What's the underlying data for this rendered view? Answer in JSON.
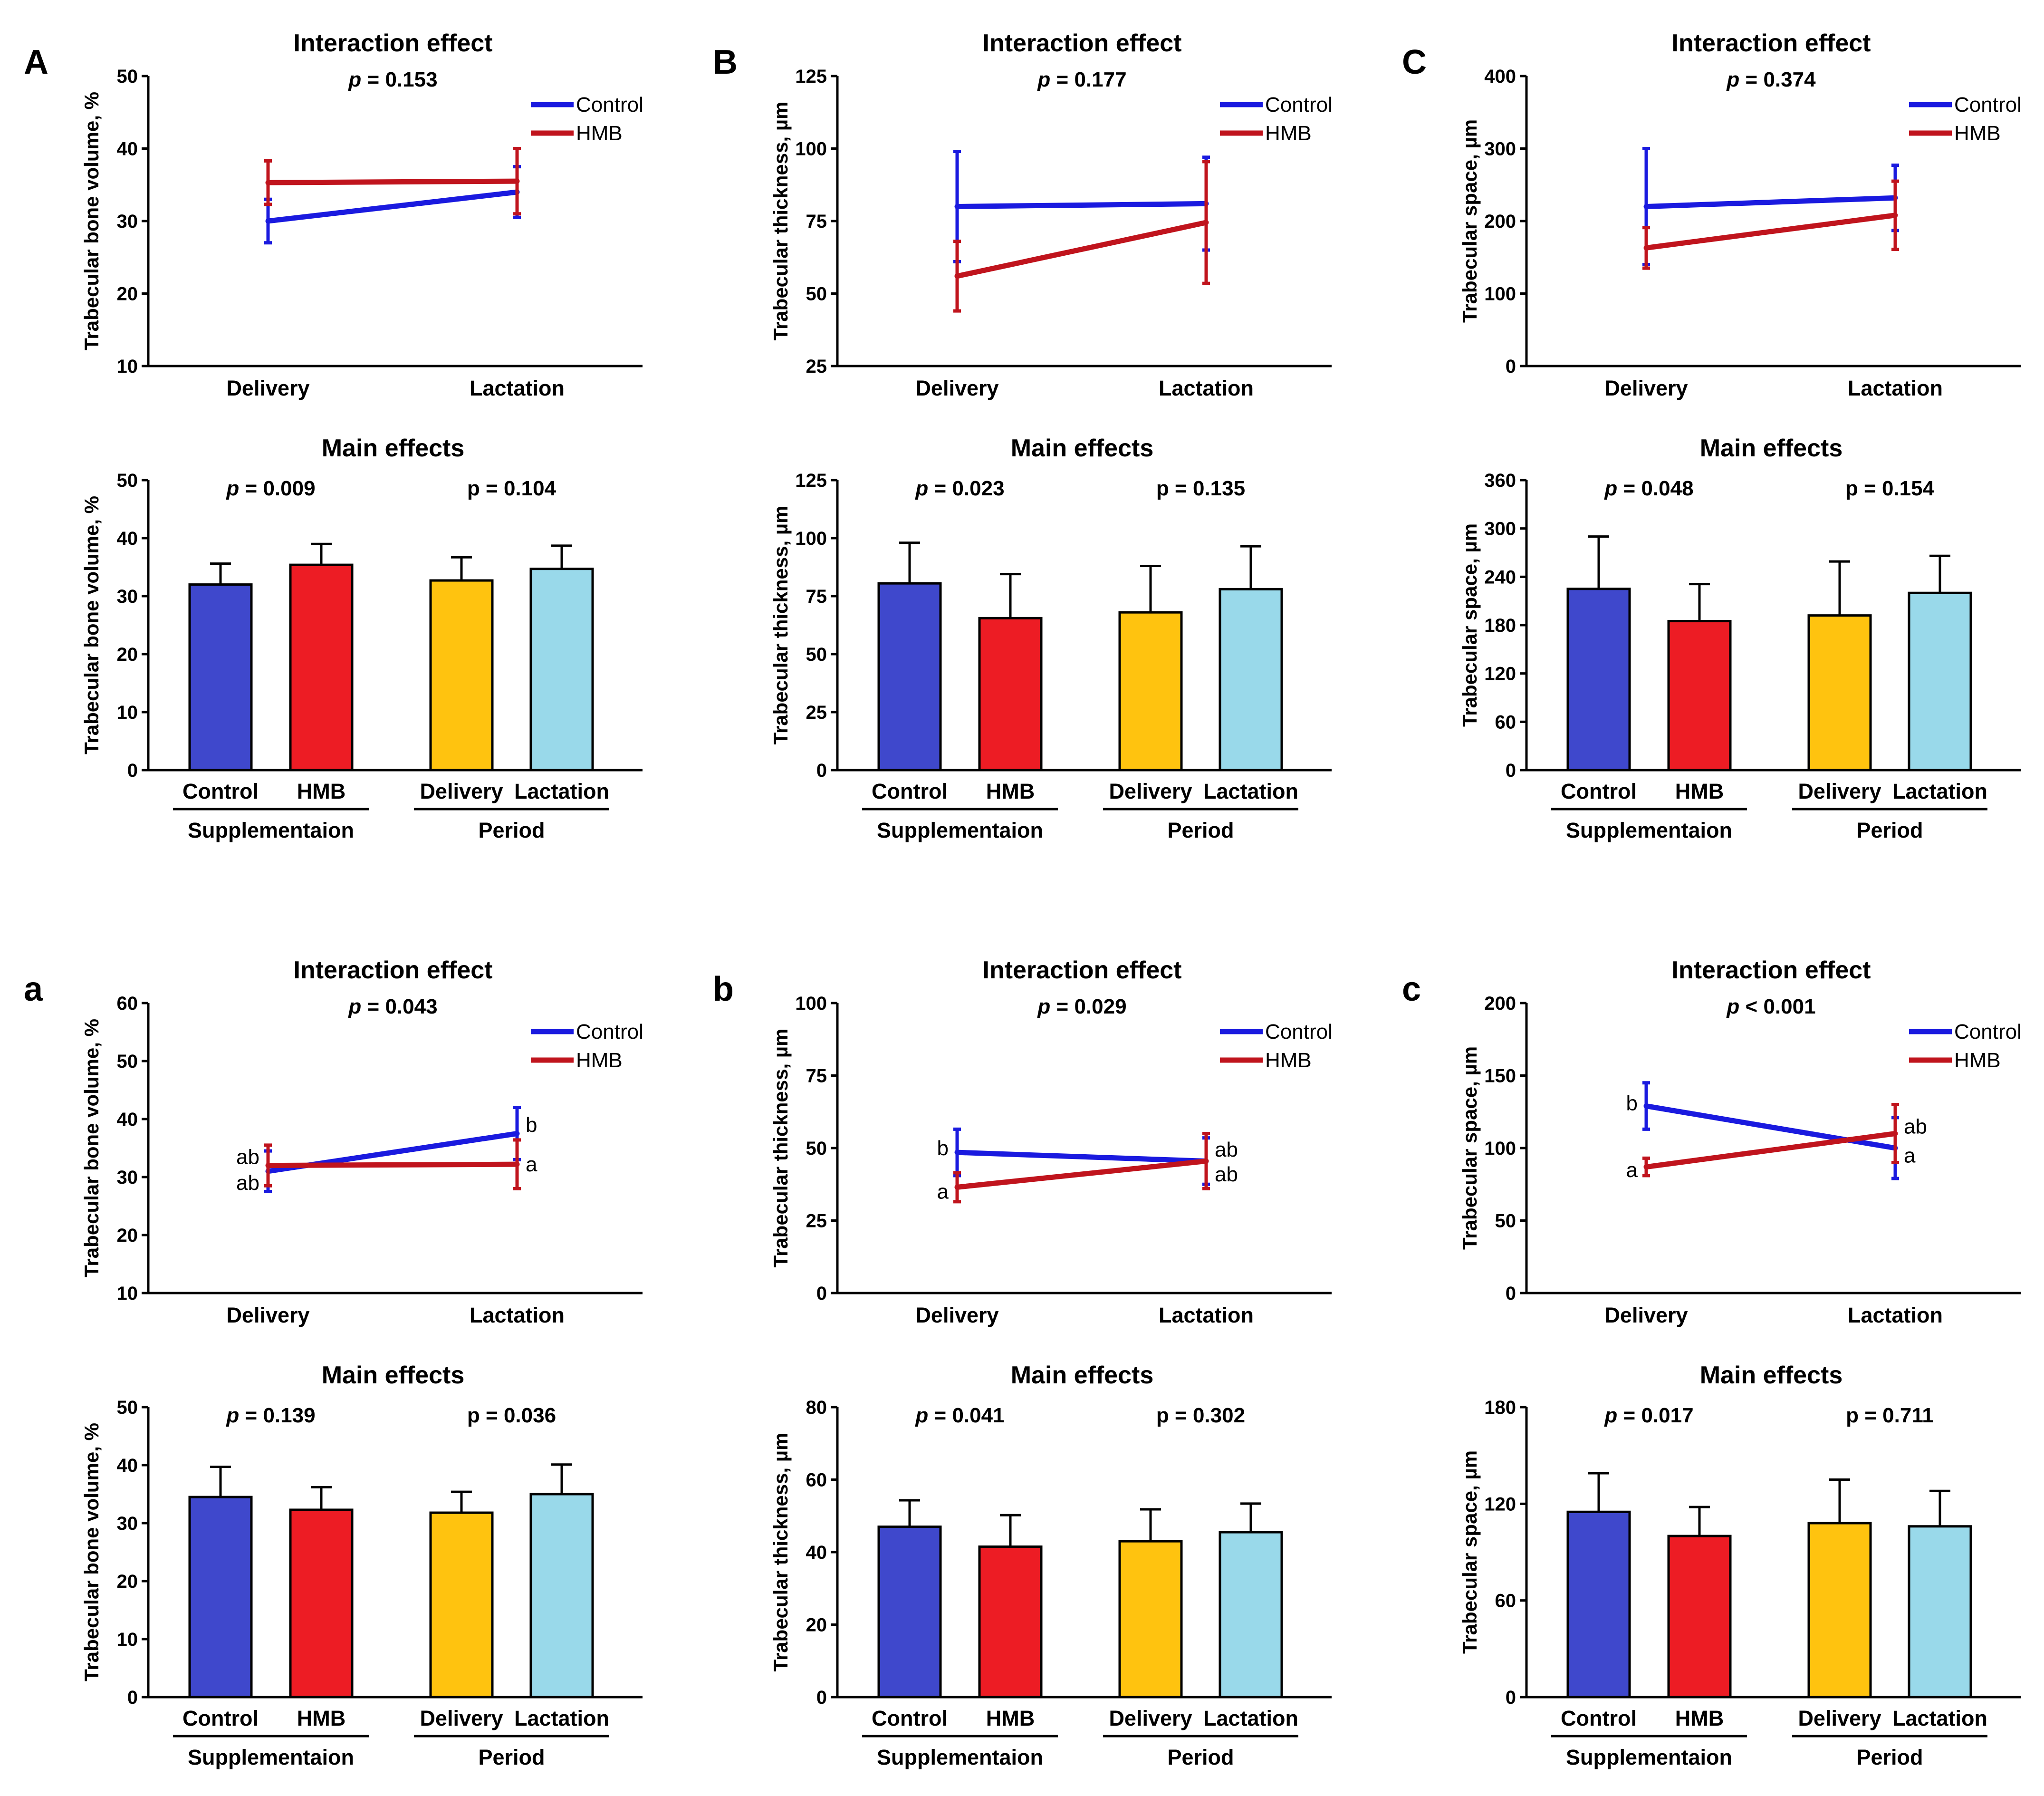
{
  "colors": {
    "control_line": "#1a1adf",
    "hmb_line": "#c0141d",
    "bar_control": "#3f48cc",
    "bar_hmb": "#ed1c24",
    "bar_delivery": "#ffc30f",
    "bar_lactation": "#99d9ea"
  },
  "chart_data": [
    {
      "panel": "A",
      "type": "line",
      "title": "Interaction effect",
      "p_prefix": "p",
      "p_text": " = 0.153",
      "ylabel": "Trabecular bone volume, %",
      "ylim": [
        10,
        50
      ],
      "ticks": [
        10,
        20,
        30,
        40,
        50
      ],
      "categories": [
        "Delivery",
        "Lactation"
      ],
      "series": [
        {
          "name": "Control",
          "values": [
            30,
            34
          ],
          "errors": [
            3,
            3.5
          ]
        },
        {
          "name": "HMB",
          "values": [
            35.3,
            35.5
          ],
          "errors": [
            3,
            4.5
          ]
        }
      ],
      "annotations": []
    },
    {
      "panel": "A",
      "type": "bar",
      "title": "Main effects",
      "ylabel": "Trabecular bone volume, %",
      "ylim": [
        0,
        50
      ],
      "ticks": [
        0,
        10,
        20,
        30,
        40,
        50
      ],
      "categories": [
        "Control",
        "HMB",
        "Delivery",
        "Lactation"
      ],
      "values": [
        32,
        35.4,
        32.7,
        34.7
      ],
      "errors": [
        3.6,
        3.6,
        4.0,
        4.0
      ],
      "groups": [
        {
          "label": "Supplementaion",
          "p_prefix": "p",
          "p_text": " = 0.009"
        },
        {
          "label": "Period",
          "p_prefix": "",
          "p_text": "p = 0.104"
        }
      ]
    },
    {
      "panel": "B",
      "type": "line",
      "title": "Interaction effect",
      "p_prefix": "p",
      "p_text": " = 0.177",
      "ylabel": "Trabecular thickness, µm",
      "ylim": [
        25,
        125
      ],
      "ticks": [
        25,
        50,
        75,
        100,
        125
      ],
      "categories": [
        "Delivery",
        "Lactation"
      ],
      "series": [
        {
          "name": "Control",
          "values": [
            80,
            81
          ],
          "errors": [
            19,
            16
          ]
        },
        {
          "name": "HMB",
          "values": [
            56,
            74.5
          ],
          "errors": [
            12,
            21
          ]
        }
      ],
      "annotations": []
    },
    {
      "panel": "B",
      "type": "bar",
      "title": "Main effects",
      "ylabel": "Trabecular thickness, µm",
      "ylim": [
        0,
        125
      ],
      "ticks": [
        0,
        25,
        50,
        75,
        100,
        125
      ],
      "categories": [
        "Control",
        "HMB",
        "Delivery",
        "Lactation"
      ],
      "values": [
        80.5,
        65.5,
        68,
        78
      ],
      "errors": [
        17.5,
        19,
        20,
        18.5
      ],
      "groups": [
        {
          "label": "Supplementaion",
          "p_prefix": "p",
          "p_text": " = 0.023"
        },
        {
          "label": "Period",
          "p_prefix": "",
          "p_text": "p = 0.135"
        }
      ]
    },
    {
      "panel": "C",
      "type": "line",
      "title": "Interaction effect",
      "p_prefix": "p",
      "p_text": " = 0.374",
      "ylabel": "Trabecular space, µm",
      "ylim": [
        0,
        400
      ],
      "ticks": [
        0,
        100,
        200,
        300,
        400
      ],
      "categories": [
        "Delivery",
        "Lactation"
      ],
      "series": [
        {
          "name": "Control",
          "values": [
            220,
            232
          ],
          "errors": [
            80,
            45
          ]
        },
        {
          "name": "HMB",
          "values": [
            163,
            208
          ],
          "errors": [
            28,
            47
          ]
        }
      ],
      "annotations": []
    },
    {
      "panel": "C",
      "type": "bar",
      "title": "Main effects",
      "ylabel": "Trabecular space, µm",
      "ylim": [
        0,
        360
      ],
      "ticks": [
        0,
        60,
        120,
        180,
        240,
        300,
        360
      ],
      "categories": [
        "Control",
        "HMB",
        "Delivery",
        "Lactation"
      ],
      "values": [
        225,
        185,
        192,
        220
      ],
      "errors": [
        65,
        46,
        67,
        46
      ],
      "groups": [
        {
          "label": "Supplementaion",
          "p_prefix": "p",
          "p_text": " = 0.048"
        },
        {
          "label": "Period",
          "p_prefix": "",
          "p_text": "p = 0.154"
        }
      ]
    },
    {
      "panel": "a",
      "type": "line",
      "title": "Interaction effect",
      "p_prefix": "p",
      "p_text": " = 0.043",
      "ylabel": "Trabecular bone volume, %",
      "ylim": [
        10,
        60
      ],
      "ticks": [
        10,
        20,
        30,
        40,
        50,
        60
      ],
      "categories": [
        "Delivery",
        "Lactation"
      ],
      "series": [
        {
          "name": "Control",
          "values": [
            31,
            37.5
          ],
          "errors": [
            3.5,
            4.5
          ]
        },
        {
          "name": "HMB",
          "values": [
            32,
            32.2
          ],
          "errors": [
            3.5,
            4.2
          ]
        }
      ],
      "annotations": [
        {
          "text": "ab",
          "cat": 0,
          "value": 33.5,
          "side": "left"
        },
        {
          "text": "ab",
          "cat": 0,
          "value": 29,
          "side": "left"
        },
        {
          "text": "b",
          "cat": 1,
          "value": 39,
          "side": "right"
        },
        {
          "text": "a",
          "cat": 1,
          "value": 32.2,
          "side": "right"
        }
      ]
    },
    {
      "panel": "a",
      "type": "bar",
      "title": "Main effects",
      "ylabel": "Trabecular bone volume, %",
      "ylim": [
        0,
        50
      ],
      "ticks": [
        0,
        10,
        20,
        30,
        40,
        50
      ],
      "categories": [
        "Control",
        "HMB",
        "Delivery",
        "Lactation"
      ],
      "values": [
        34.5,
        32.3,
        31.8,
        35
      ],
      "errors": [
        5.2,
        3.9,
        3.6,
        5.1
      ],
      "groups": [
        {
          "label": "Supplementaion",
          "p_prefix": "p",
          "p_text": " = 0.139"
        },
        {
          "label": "Period",
          "p_prefix": "",
          "p_text": "p = 0.036"
        }
      ]
    },
    {
      "panel": "b",
      "type": "line",
      "title": "Interaction effect",
      "p_prefix": "p",
      "p_text": " = 0.029",
      "ylabel": "Trabecular thickness, µm",
      "ylim": [
        0,
        100
      ],
      "ticks": [
        0,
        25,
        50,
        75,
        100
      ],
      "categories": [
        "Delivery",
        "Lactation"
      ],
      "series": [
        {
          "name": "Control",
          "values": [
            48.5,
            45.5
          ],
          "errors": [
            8,
            8
          ]
        },
        {
          "name": "HMB",
          "values": [
            36.5,
            45.5
          ],
          "errors": [
            5,
            9.5
          ]
        }
      ],
      "annotations": [
        {
          "text": "b",
          "cat": 0,
          "value": 50,
          "side": "left"
        },
        {
          "text": "a",
          "cat": 0,
          "value": 35,
          "side": "left"
        },
        {
          "text": "ab",
          "cat": 1,
          "value": 49.5,
          "side": "right"
        },
        {
          "text": "ab",
          "cat": 1,
          "value": 41,
          "side": "right"
        }
      ]
    },
    {
      "panel": "b",
      "type": "bar",
      "title": "Main effects",
      "ylabel": "Trabecular thickness, µm",
      "ylim": [
        0,
        80
      ],
      "ticks": [
        0,
        20,
        40,
        60,
        80
      ],
      "categories": [
        "Control",
        "HMB",
        "Delivery",
        "Lactation"
      ],
      "values": [
        47,
        41.5,
        43,
        45.5
      ],
      "errors": [
        7.3,
        8.7,
        8.8,
        7.9
      ],
      "groups": [
        {
          "label": "Supplementaion",
          "p_prefix": "p",
          "p_text": " = 0.041"
        },
        {
          "label": "Period",
          "p_prefix": "",
          "p_text": "p = 0.302"
        }
      ]
    },
    {
      "panel": "c",
      "type": "line",
      "title": "Interaction effect",
      "p_prefix": "p",
      "p_text": " < 0.001",
      "ylabel": "Trabecular space, µm",
      "ylim": [
        0,
        200
      ],
      "ticks": [
        0,
        50,
        100,
        150,
        200
      ],
      "categories": [
        "Delivery",
        "Lactation"
      ],
      "series": [
        {
          "name": "Control",
          "values": [
            129,
            100
          ],
          "errors": [
            16,
            21
          ]
        },
        {
          "name": "HMB",
          "values": [
            87,
            110
          ],
          "errors": [
            6,
            20
          ]
        }
      ],
      "annotations": [
        {
          "text": "b",
          "cat": 0,
          "value": 131,
          "side": "left"
        },
        {
          "text": "a",
          "cat": 0,
          "value": 85,
          "side": "left"
        },
        {
          "text": "ab",
          "cat": 1,
          "value": 115,
          "side": "right"
        },
        {
          "text": "a",
          "cat": 1,
          "value": 95,
          "side": "right"
        }
      ]
    },
    {
      "panel": "c",
      "type": "bar",
      "title": "Main effects",
      "ylabel": "Trabecular space, µm",
      "ylim": [
        0,
        180
      ],
      "ticks": [
        0,
        60,
        120,
        180
      ],
      "categories": [
        "Control",
        "HMB",
        "Delivery",
        "Lactation"
      ],
      "values": [
        115,
        100,
        108,
        106
      ],
      "errors": [
        24,
        18,
        27,
        22
      ],
      "groups": [
        {
          "label": "Supplementaion",
          "p_prefix": "p",
          "p_text": " = 0.017"
        },
        {
          "label": "Period",
          "p_prefix": "",
          "p_text": "p = 0.711"
        }
      ]
    }
  ]
}
